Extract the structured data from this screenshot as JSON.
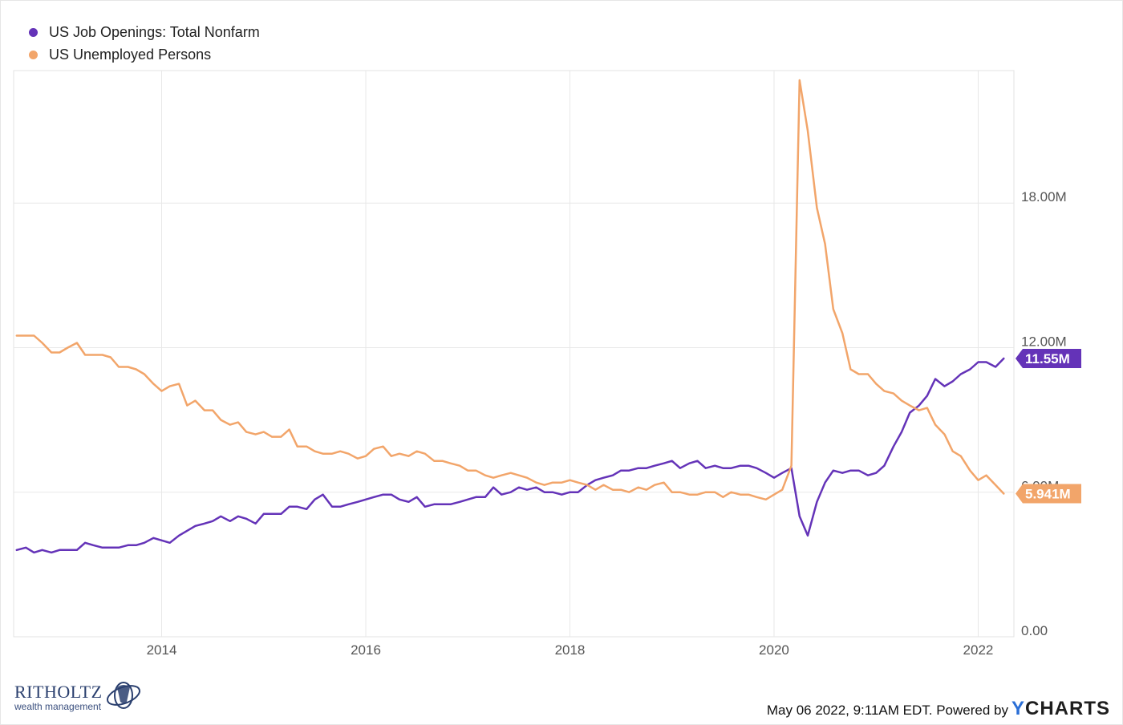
{
  "chart_data": {
    "type": "line",
    "title": "",
    "xlabel": "",
    "ylabel": "",
    "x_range": [
      2012.55,
      2022.35
    ],
    "ylim": [
      0,
      23.5
    ],
    "y_unit": "M",
    "grid": true,
    "legend_position": "top-left",
    "y_ticks": [
      {
        "value": 0,
        "label": "0.00"
      },
      {
        "value": 6,
        "label": "6.00M"
      },
      {
        "value": 12,
        "label": "12.00M"
      },
      {
        "value": 18,
        "label": "18.00M"
      }
    ],
    "x_ticks": [
      {
        "value": 2014,
        "label": "2014"
      },
      {
        "value": 2016,
        "label": "2016"
      },
      {
        "value": 2018,
        "label": "2018"
      },
      {
        "value": 2020,
        "label": "2020"
      },
      {
        "value": 2022,
        "label": "2022"
      }
    ],
    "series": [
      {
        "name": "US Job Openings: Total Nonfarm",
        "color": "#6433b8",
        "end_label": "11.55M",
        "x": [
          2012.58,
          2012.67,
          2012.75,
          2012.83,
          2012.92,
          2013.0,
          2013.08,
          2013.17,
          2013.25,
          2013.33,
          2013.42,
          2013.5,
          2013.58,
          2013.67,
          2013.75,
          2013.83,
          2013.92,
          2014.0,
          2014.08,
          2014.17,
          2014.25,
          2014.33,
          2014.42,
          2014.5,
          2014.58,
          2014.67,
          2014.75,
          2014.83,
          2014.92,
          2015.0,
          2015.08,
          2015.17,
          2015.25,
          2015.33,
          2015.42,
          2015.5,
          2015.58,
          2015.67,
          2015.75,
          2015.83,
          2015.92,
          2016.0,
          2016.08,
          2016.17,
          2016.25,
          2016.33,
          2016.42,
          2016.5,
          2016.58,
          2016.67,
          2016.75,
          2016.83,
          2016.92,
          2017.0,
          2017.08,
          2017.17,
          2017.25,
          2017.33,
          2017.42,
          2017.5,
          2017.58,
          2017.67,
          2017.75,
          2017.83,
          2017.92,
          2018.0,
          2018.08,
          2018.17,
          2018.25,
          2018.33,
          2018.42,
          2018.5,
          2018.58,
          2018.67,
          2018.75,
          2018.83,
          2018.92,
          2019.0,
          2019.08,
          2019.17,
          2019.25,
          2019.33,
          2019.42,
          2019.5,
          2019.58,
          2019.67,
          2019.75,
          2019.83,
          2019.92,
          2020.0,
          2020.08,
          2020.17,
          2020.25,
          2020.33,
          2020.42,
          2020.5,
          2020.58,
          2020.67,
          2020.75,
          2020.83,
          2020.92,
          2021.0,
          2021.08,
          2021.17,
          2021.25,
          2021.33,
          2021.42,
          2021.5,
          2021.58,
          2021.67,
          2021.75,
          2021.83,
          2021.92,
          2022.0,
          2022.08,
          2022.17,
          2022.25
        ],
        "values": [
          3.6,
          3.7,
          3.5,
          3.6,
          3.5,
          3.6,
          3.6,
          3.6,
          3.9,
          3.8,
          3.7,
          3.7,
          3.7,
          3.8,
          3.8,
          3.9,
          4.1,
          4.0,
          3.9,
          4.2,
          4.4,
          4.6,
          4.7,
          4.8,
          5.0,
          4.8,
          5.0,
          4.9,
          4.7,
          5.1,
          5.1,
          5.1,
          5.4,
          5.4,
          5.3,
          5.7,
          5.9,
          5.4,
          5.4,
          5.5,
          5.6,
          5.7,
          5.8,
          5.9,
          5.9,
          5.7,
          5.6,
          5.8,
          5.4,
          5.5,
          5.5,
          5.5,
          5.6,
          5.7,
          5.8,
          5.8,
          6.2,
          5.9,
          6.0,
          6.2,
          6.1,
          6.2,
          6.0,
          6.0,
          5.9,
          6.0,
          6.0,
          6.3,
          6.5,
          6.6,
          6.7,
          6.9,
          6.9,
          7.0,
          7.0,
          7.1,
          7.2,
          7.3,
          7.0,
          7.2,
          7.3,
          7.0,
          7.1,
          7.0,
          7.0,
          7.1,
          7.1,
          7.0,
          6.8,
          6.6,
          6.8,
          7.0,
          5.0,
          4.2,
          5.6,
          6.4,
          6.9,
          6.8,
          6.9,
          6.9,
          6.7,
          6.8,
          7.1,
          7.9,
          8.5,
          9.3,
          9.6,
          10.0,
          10.7,
          10.4,
          10.6,
          10.9,
          11.1,
          11.4,
          11.4,
          11.2,
          11.55
        ]
      },
      {
        "name": "US Unemployed Persons",
        "color": "#f2a56a",
        "end_label": "5.941M",
        "x": [
          2012.58,
          2012.67,
          2012.75,
          2012.83,
          2012.92,
          2013.0,
          2013.08,
          2013.17,
          2013.25,
          2013.33,
          2013.42,
          2013.5,
          2013.58,
          2013.67,
          2013.75,
          2013.83,
          2013.92,
          2014.0,
          2014.08,
          2014.17,
          2014.25,
          2014.33,
          2014.42,
          2014.5,
          2014.58,
          2014.67,
          2014.75,
          2014.83,
          2014.92,
          2015.0,
          2015.08,
          2015.17,
          2015.25,
          2015.33,
          2015.42,
          2015.5,
          2015.58,
          2015.67,
          2015.75,
          2015.83,
          2015.92,
          2016.0,
          2016.08,
          2016.17,
          2016.25,
          2016.33,
          2016.42,
          2016.5,
          2016.58,
          2016.67,
          2016.75,
          2016.83,
          2016.92,
          2017.0,
          2017.08,
          2017.17,
          2017.25,
          2017.33,
          2017.42,
          2017.5,
          2017.58,
          2017.67,
          2017.75,
          2017.83,
          2017.92,
          2018.0,
          2018.08,
          2018.17,
          2018.25,
          2018.33,
          2018.42,
          2018.5,
          2018.58,
          2018.67,
          2018.75,
          2018.83,
          2018.92,
          2019.0,
          2019.08,
          2019.17,
          2019.25,
          2019.33,
          2019.42,
          2019.5,
          2019.58,
          2019.67,
          2019.75,
          2019.83,
          2019.92,
          2020.0,
          2020.08,
          2020.17,
          2020.25,
          2020.33,
          2020.42,
          2020.5,
          2020.58,
          2020.67,
          2020.75,
          2020.83,
          2020.92,
          2021.0,
          2021.08,
          2021.17,
          2021.25,
          2021.33,
          2021.42,
          2021.5,
          2021.58,
          2021.67,
          2021.75,
          2021.83,
          2021.92,
          2022.0,
          2022.08,
          2022.17,
          2022.25
        ],
        "values": [
          12.5,
          12.5,
          12.5,
          12.2,
          11.8,
          11.8,
          12.0,
          12.2,
          11.7,
          11.7,
          11.7,
          11.6,
          11.2,
          11.2,
          11.1,
          10.9,
          10.5,
          10.2,
          10.4,
          10.5,
          9.6,
          9.8,
          9.4,
          9.4,
          9.0,
          8.8,
          8.9,
          8.5,
          8.4,
          8.5,
          8.3,
          8.3,
          8.6,
          7.9,
          7.9,
          7.7,
          7.6,
          7.6,
          7.7,
          7.6,
          7.4,
          7.5,
          7.8,
          7.9,
          7.5,
          7.6,
          7.5,
          7.7,
          7.6,
          7.3,
          7.3,
          7.2,
          7.1,
          6.9,
          6.9,
          6.7,
          6.6,
          6.7,
          6.8,
          6.7,
          6.6,
          6.4,
          6.3,
          6.4,
          6.4,
          6.5,
          6.4,
          6.3,
          6.1,
          6.3,
          6.1,
          6.1,
          6.0,
          6.2,
          6.1,
          6.3,
          6.4,
          6.0,
          6.0,
          5.9,
          5.9,
          6.0,
          6.0,
          5.8,
          6.0,
          5.9,
          5.9,
          5.8,
          5.7,
          5.9,
          6.1,
          7.1,
          23.1,
          21.0,
          17.8,
          16.3,
          13.6,
          12.6,
          11.1,
          10.9,
          10.9,
          10.5,
          10.2,
          10.1,
          9.8,
          9.6,
          9.4,
          9.5,
          8.8,
          8.4,
          7.7,
          7.5,
          6.9,
          6.5,
          6.7,
          6.3,
          5.941
        ]
      }
    ]
  },
  "footer": {
    "timestamp": "May 06 2022, 9:11AM EDT. Powered by",
    "brand_y": "Y",
    "brand_rest": "CHARTS"
  },
  "logo": {
    "name": "RITHOLTZ",
    "subtitle": "wealth management"
  }
}
